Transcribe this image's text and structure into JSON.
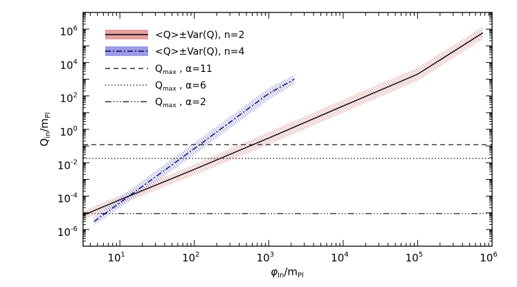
{
  "chart_data": {
    "type": "line",
    "title": "",
    "xlabel": {
      "main": "φ",
      "sub1": "In",
      "mid": "/m",
      "sub2": "Pl"
    },
    "ylabel": {
      "main": "Q",
      "sub1": "in",
      "mid": "/m",
      "sub2": "Pl"
    },
    "x_scale": "log",
    "y_scale": "log",
    "xlim": [
      3.2,
      1000000
    ],
    "ylim": [
      1e-07,
      10000000.0
    ],
    "x_tick_labels": [
      {
        "value": 10,
        "base": "10",
        "exp": "1"
      },
      {
        "value": 100,
        "base": "10",
        "exp": "2"
      },
      {
        "value": 1000,
        "base": "10",
        "exp": "3"
      },
      {
        "value": 10000,
        "base": "10",
        "exp": "4"
      },
      {
        "value": 100000,
        "base": "10",
        "exp": "5"
      },
      {
        "value": 1000000,
        "base": "10",
        "exp": "6"
      }
    ],
    "y_tick_labels": [
      {
        "value": 1e-06,
        "base": "10",
        "exp": "-6"
      },
      {
        "value": 0.0001,
        "base": "10",
        "exp": "-4"
      },
      {
        "value": 0.01,
        "base": "10",
        "exp": "-2"
      },
      {
        "value": 1,
        "base": "10",
        "exp": "0"
      },
      {
        "value": 100,
        "base": "10",
        "exp": "2"
      },
      {
        "value": 10000,
        "base": "10",
        "exp": "4"
      },
      {
        "value": 1000000,
        "base": "10",
        "exp": "6"
      }
    ],
    "grid": false,
    "legend_position": "top-left",
    "series": [
      {
        "name": "<Q>±Var(Q), n=2",
        "legend_main": "<Q>±Var(Q), n=2",
        "kind": "band",
        "color": "#000000",
        "band_color": "#d05050",
        "dash": "",
        "x": [
          3.3,
          10,
          100,
          1000,
          10000,
          100000,
          750000
        ],
        "y": [
          7.5e-06,
          6e-05,
          0.004,
          0.3,
          25,
          2000,
          600000
        ],
        "y_low": [
          4e-06,
          3.2e-05,
          0.0018,
          0.12,
          10,
          800,
          250000
        ],
        "y_high": [
          1.4e-05,
          0.00011,
          0.008,
          0.7,
          60,
          5000,
          1400000
        ]
      },
      {
        "name": "<Q>±Var(Q), n=4",
        "legend_main": "<Q>±Var(Q), n=4",
        "kind": "band",
        "color": "#000066",
        "band_color": "#4a4ad0",
        "dash": "8,3,2,3",
        "x": [
          4.5,
          10,
          100,
          1000,
          2200
        ],
        "y": [
          3e-06,
          4e-05,
          0.07,
          140,
          1000
        ],
        "y_low": [
          1.8e-06,
          2e-05,
          0.03,
          60,
          500
        ],
        "y_high": [
          6e-06,
          9e-05,
          0.16,
          300,
          1800
        ]
      },
      {
        "name": "Q_max , α=11",
        "legend_main": "Q",
        "legend_sub": "max",
        "legend_tail": " , α=11",
        "kind": "hline",
        "color": "#000000",
        "dash": "7,5",
        "y_value": 0.12
      },
      {
        "name": "Q_max , α=6",
        "legend_main": "Q",
        "legend_sub": "max",
        "legend_tail": " , α=6",
        "kind": "hline",
        "color": "#000000",
        "dash": "1.5,3",
        "y_value": 0.018
      },
      {
        "name": "Q_max , α=2",
        "legend_main": "Q",
        "legend_sub": "max",
        "legend_tail": " , α=2",
        "kind": "hline",
        "color": "#000000",
        "dash": "9,3,1.5,3,1.5,3,1.5,3",
        "y_value": 9e-06
      }
    ]
  }
}
